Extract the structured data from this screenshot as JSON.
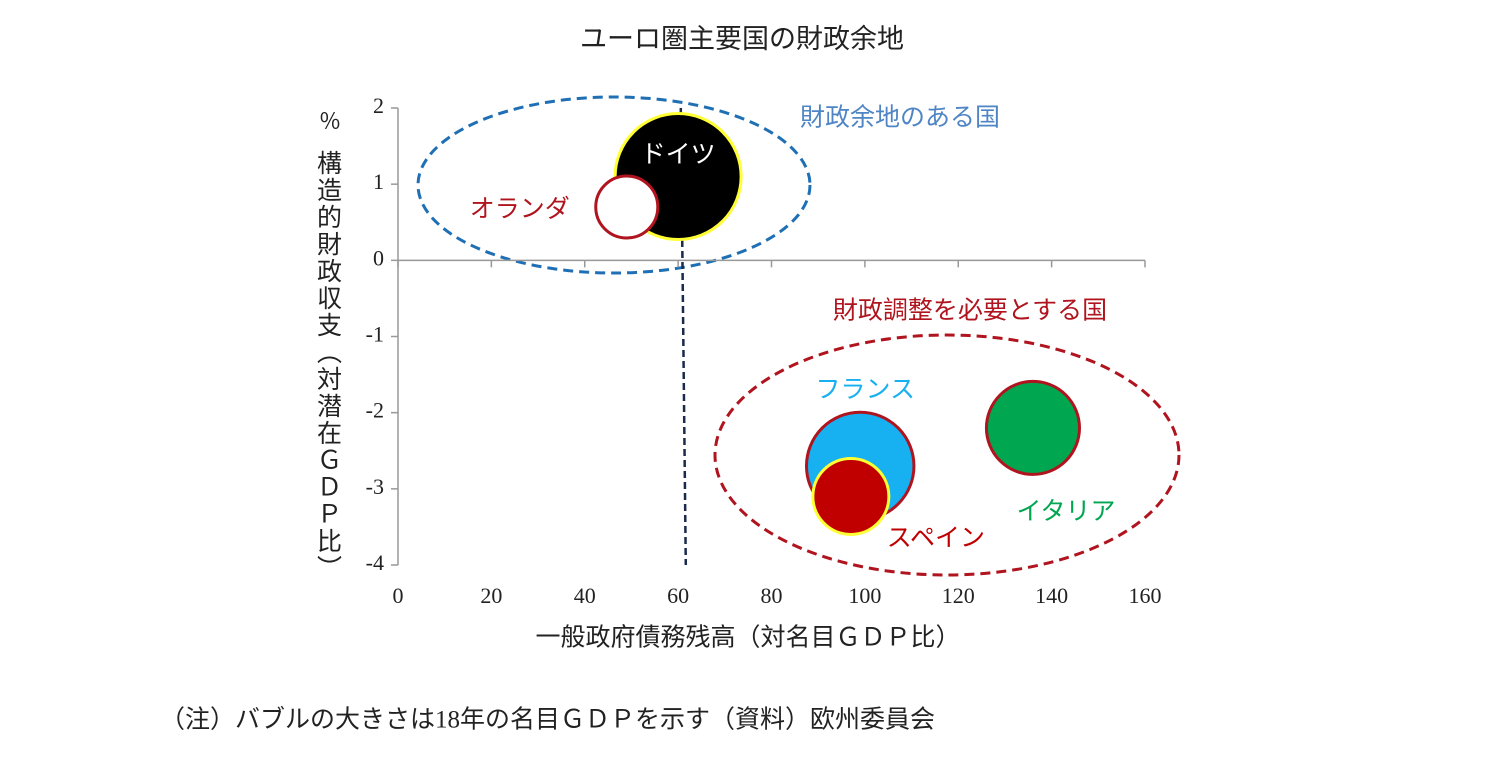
{
  "chart_data": {
    "type": "bubble",
    "title": "ユーロ圏主要国の財政余地",
    "x_label": "一般政府債務残高（対名目ＧＤＰ比）",
    "y_unit": "％",
    "y_label": "構造的財政収支（対潜在ＧＤＰ比）",
    "xlim": [
      0,
      160
    ],
    "xticks": [
      0,
      20,
      40,
      60,
      80,
      100,
      120,
      140,
      160
    ],
    "ylim": [
      -4,
      2
    ],
    "yticks": [
      -4,
      -3,
      -2,
      -1,
      0,
      1,
      2
    ],
    "vline": 61,
    "annotations": [
      "財政余地のある国",
      "財政調整を必要とする国"
    ],
    "series": [
      {
        "name": "ドイツ",
        "color": "#000000",
        "edge_color": "#ffff33",
        "label_color": "#ffffff",
        "x": 60,
        "y": 1.1,
        "size": 3.3
      },
      {
        "name": "オランダ",
        "color": "#ffffff",
        "edge_color": "#b0141e",
        "label_color": "#b0141e",
        "x": 49,
        "y": 0.7,
        "size": 0.8
      },
      {
        "name": "フランス",
        "color": "#17b0f0",
        "edge_color": "#b0141e",
        "label_color": "#17b0f0",
        "x": 99,
        "y": -2.7,
        "size": 2.4
      },
      {
        "name": "スペイン",
        "color": "#c00000",
        "edge_color": "#ffff33",
        "label_color": "#c00000",
        "x": 97,
        "y": -3.1,
        "size": 1.2
      },
      {
        "name": "イタリア",
        "color": "#00a650",
        "edge_color": "#b0141e",
        "label_color": "#00a650",
        "x": 136,
        "y": -2.2,
        "size": 1.8
      }
    ],
    "note": "（注）バブルの大きさは18年の名目ＧＤＰを示す（資料）欧州委員会"
  }
}
